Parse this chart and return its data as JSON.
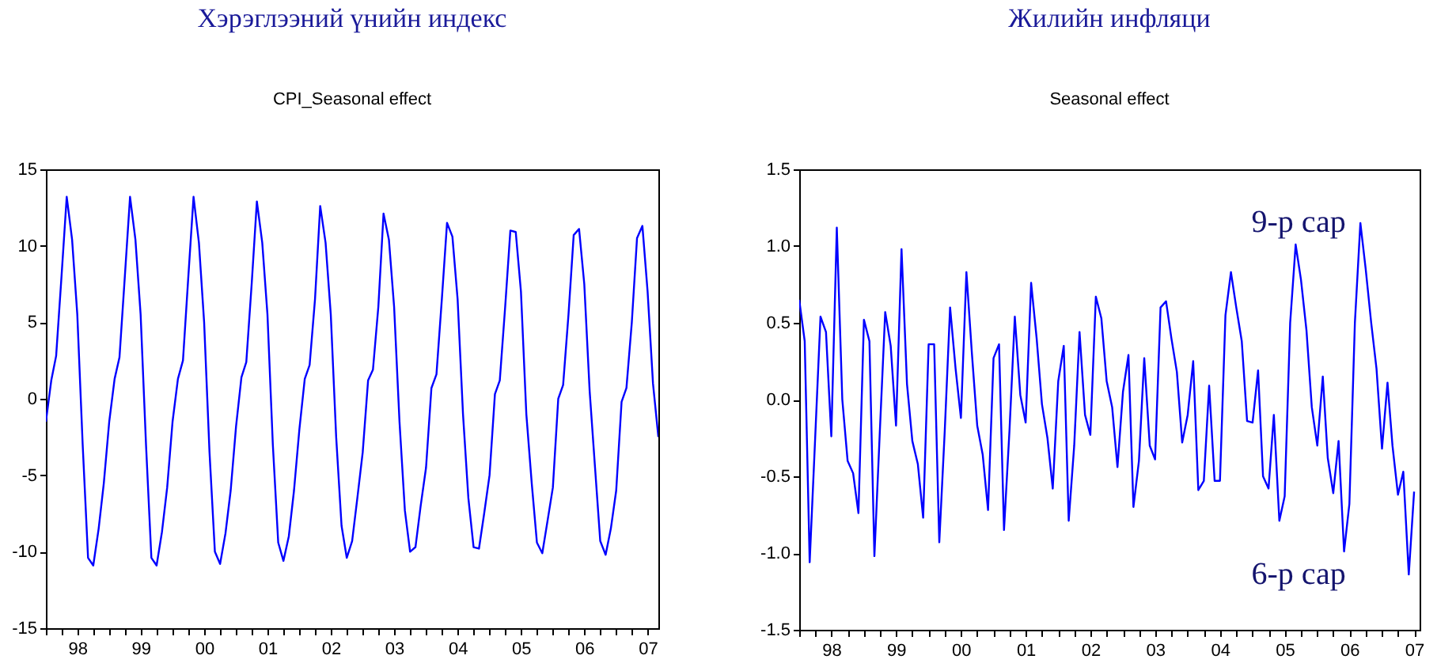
{
  "chart_data": [
    {
      "type": "line",
      "title": "Хэрэглээний үнийн индекс",
      "subtitle": "CPI_Seasonal effect",
      "x": [
        "1998-01",
        "1998-02",
        "1998-03",
        "1998-04",
        "1998-05",
        "1998-06",
        "1998-07",
        "1998-08",
        "1998-09",
        "1998-10",
        "1998-11",
        "1998-12",
        "1999-01",
        "1999-02",
        "1999-03",
        "1999-04",
        "1999-05",
        "1999-06",
        "1999-07",
        "1999-08",
        "1999-09",
        "1999-10",
        "1999-11",
        "1999-12",
        "2000-01",
        "2000-02",
        "2000-03",
        "2000-04",
        "2000-05",
        "2000-06",
        "2000-07",
        "2000-08",
        "2000-09",
        "2000-10",
        "2000-11",
        "2000-12",
        "2001-01",
        "2001-02",
        "2001-03",
        "2001-04",
        "2001-05",
        "2001-06",
        "2001-07",
        "2001-08",
        "2001-09",
        "2001-10",
        "2001-11",
        "2001-12",
        "2002-01",
        "2002-02",
        "2002-03",
        "2002-04",
        "2002-05",
        "2002-06",
        "2002-07",
        "2002-08",
        "2002-09",
        "2002-10",
        "2002-11",
        "2002-12",
        "2003-01",
        "2003-02",
        "2003-03",
        "2003-04",
        "2003-05",
        "2003-06",
        "2003-07",
        "2003-08",
        "2003-09",
        "2003-10",
        "2003-11",
        "2003-12",
        "2004-01",
        "2004-02",
        "2004-03",
        "2004-04",
        "2004-05",
        "2004-06",
        "2004-07",
        "2004-08",
        "2004-09",
        "2004-10",
        "2004-11",
        "2004-12",
        "2005-01",
        "2005-02",
        "2005-03",
        "2005-04",
        "2005-05",
        "2005-06",
        "2005-07",
        "2005-08",
        "2005-09",
        "2005-10",
        "2005-11",
        "2005-12",
        "2006-01",
        "2006-02",
        "2006-03",
        "2006-04",
        "2006-05",
        "2006-06",
        "2006-07",
        "2006-08",
        "2006-09",
        "2006-10",
        "2006-11",
        "2006-12",
        "2007-01",
        "2007-02",
        "2007-03",
        "2007-04",
        "2007-05",
        "2007-06",
        "2007-07",
        "2007-08",
        "2007-09"
      ],
      "series": [
        {
          "color": "#0000ff",
          "values": [
            -1.5,
            1.2,
            2.8,
            8.0,
            13.2,
            10.4,
            5.5,
            -3.0,
            -10.4,
            -10.9,
            -8.5,
            -5.5,
            -1.5,
            1.3,
            2.7,
            8.0,
            13.2,
            10.4,
            5.5,
            -3.0,
            -10.4,
            -10.9,
            -8.7,
            -5.8,
            -1.5,
            1.3,
            2.5,
            8.0,
            13.2,
            10.2,
            5.0,
            -3.5,
            -10.0,
            -10.8,
            -8.8,
            -6.0,
            -1.8,
            1.4,
            2.4,
            7.5,
            12.9,
            10.2,
            5.5,
            -3.0,
            -9.4,
            -10.6,
            -9.0,
            -6.0,
            -2.0,
            1.3,
            2.2,
            6.5,
            12.6,
            10.2,
            5.5,
            -2.5,
            -8.3,
            -10.4,
            -9.3,
            -6.5,
            -3.5,
            1.2,
            1.9,
            6.0,
            12.1,
            10.4,
            6.0,
            -1.5,
            -7.3,
            -10.0,
            -9.7,
            -7.0,
            -4.5,
            0.7,
            1.6,
            6.5,
            11.5,
            10.6,
            6.5,
            -1.0,
            -6.5,
            -9.7,
            -9.8,
            -7.5,
            -5.0,
            0.3,
            1.2,
            6.0,
            11.0,
            10.9,
            7.0,
            -1.0,
            -5.5,
            -9.4,
            -10.1,
            -8.0,
            -5.8,
            0.0,
            0.9,
            5.5,
            10.7,
            11.1,
            7.5,
            0.5,
            -4.5,
            -9.3,
            -10.2,
            -8.5,
            -6.0,
            -0.2,
            0.7,
            5.0,
            10.5,
            11.3,
            7.0,
            1.0,
            -2.5
          ]
        }
      ],
      "xlim": [
        "1998-01",
        "2007-09"
      ],
      "xticks": [
        {
          "value": "1998-01",
          "label": null
        },
        {
          "value": "1998-04",
          "label": null
        },
        {
          "value": "1998-07",
          "label": "98"
        },
        {
          "value": "1998-10",
          "label": null
        },
        {
          "value": "1999-01",
          "label": null
        },
        {
          "value": "1999-04",
          "label": null
        },
        {
          "value": "1999-07",
          "label": "99"
        },
        {
          "value": "1999-10",
          "label": null
        },
        {
          "value": "2000-01",
          "label": null
        },
        {
          "value": "2000-04",
          "label": null
        },
        {
          "value": "2000-07",
          "label": "00"
        },
        {
          "value": "2000-10",
          "label": null
        },
        {
          "value": "2001-01",
          "label": null
        },
        {
          "value": "2001-04",
          "label": null
        },
        {
          "value": "2001-07",
          "label": "01"
        },
        {
          "value": "2001-10",
          "label": null
        },
        {
          "value": "2002-01",
          "label": null
        },
        {
          "value": "2002-04",
          "label": null
        },
        {
          "value": "2002-07",
          "label": "02"
        },
        {
          "value": "2002-10",
          "label": null
        },
        {
          "value": "2003-01",
          "label": null
        },
        {
          "value": "2003-04",
          "label": null
        },
        {
          "value": "2003-07",
          "label": "03"
        },
        {
          "value": "2003-10",
          "label": null
        },
        {
          "value": "2004-01",
          "label": null
        },
        {
          "value": "2004-04",
          "label": null
        },
        {
          "value": "2004-07",
          "label": "04"
        },
        {
          "value": "2004-10",
          "label": null
        },
        {
          "value": "2005-01",
          "label": null
        },
        {
          "value": "2005-04",
          "label": null
        },
        {
          "value": "2005-07",
          "label": "05"
        },
        {
          "value": "2005-10",
          "label": null
        },
        {
          "value": "2006-01",
          "label": null
        },
        {
          "value": "2006-04",
          "label": null
        },
        {
          "value": "2006-07",
          "label": "06"
        },
        {
          "value": "2006-10",
          "label": null
        },
        {
          "value": "2007-01",
          "label": null
        },
        {
          "value": "2007-04",
          "label": null
        },
        {
          "value": "2007-07",
          "label": "07"
        }
      ],
      "ylim": [
        -15,
        15
      ],
      "yticks": [
        -15,
        -10,
        -5,
        0,
        5,
        10,
        15
      ],
      "grid": false
    },
    {
      "type": "line",
      "title": "Жилийн инфляци",
      "subtitle": "Seasonal effect",
      "x": [
        "1998-01",
        "1998-02",
        "1998-03",
        "1998-04",
        "1998-05",
        "1998-06",
        "1998-07",
        "1998-08",
        "1998-09",
        "1998-10",
        "1998-11",
        "1998-12",
        "1999-01",
        "1999-02",
        "1999-03",
        "1999-04",
        "1999-05",
        "1999-06",
        "1999-07",
        "1999-08",
        "1999-09",
        "1999-10",
        "1999-11",
        "1999-12",
        "2000-01",
        "2000-02",
        "2000-03",
        "2000-04",
        "2000-05",
        "2000-06",
        "2000-07",
        "2000-08",
        "2000-09",
        "2000-10",
        "2000-11",
        "2000-12",
        "2001-01",
        "2001-02",
        "2001-03",
        "2001-04",
        "2001-05",
        "2001-06",
        "2001-07",
        "2001-08",
        "2001-09",
        "2001-10",
        "2001-11",
        "2001-12",
        "2002-01",
        "2002-02",
        "2002-03",
        "2002-04",
        "2002-05",
        "2002-06",
        "2002-07",
        "2002-08",
        "2002-09",
        "2002-10",
        "2002-11",
        "2002-12",
        "2003-01",
        "2003-02",
        "2003-03",
        "2003-04",
        "2003-05",
        "2003-06",
        "2003-07",
        "2003-08",
        "2003-09",
        "2003-10",
        "2003-11",
        "2003-12",
        "2004-01",
        "2004-02",
        "2004-03",
        "2004-04",
        "2004-05",
        "2004-06",
        "2004-07",
        "2004-08",
        "2004-09",
        "2004-10",
        "2004-11",
        "2004-12",
        "2005-01",
        "2005-02",
        "2005-03",
        "2005-04",
        "2005-05",
        "2005-06",
        "2005-07",
        "2005-08",
        "2005-09",
        "2005-10",
        "2005-11",
        "2005-12",
        "2006-01",
        "2006-02",
        "2006-03",
        "2006-04",
        "2006-05",
        "2006-06",
        "2006-07",
        "2006-08",
        "2006-09",
        "2006-10",
        "2006-11",
        "2006-12",
        "2007-01",
        "2007-02",
        "2007-03",
        "2007-04",
        "2007-05",
        "2007-06",
        "2007-07"
      ],
      "series": [
        {
          "color": "#0000ff",
          "values": [
            0.65,
            0.38,
            -1.06,
            -0.25,
            0.54,
            0.44,
            -0.24,
            1.12,
            0.0,
            -0.4,
            -0.48,
            -0.74,
            0.52,
            0.38,
            -1.02,
            -0.2,
            0.57,
            0.35,
            -0.17,
            0.98,
            0.1,
            -0.27,
            -0.42,
            -0.77,
            0.36,
            0.36,
            -0.93,
            -0.2,
            0.6,
            0.2,
            -0.12,
            0.83,
            0.3,
            -0.17,
            -0.36,
            -0.72,
            0.27,
            0.36,
            -0.85,
            -0.2,
            0.54,
            0.03,
            -0.15,
            0.76,
            0.4,
            -0.03,
            -0.25,
            -0.58,
            0.12,
            0.35,
            -0.79,
            -0.3,
            0.44,
            -0.1,
            -0.23,
            0.67,
            0.53,
            0.12,
            -0.05,
            -0.44,
            0.05,
            0.29,
            -0.7,
            -0.4,
            0.27,
            -0.3,
            -0.39,
            0.6,
            0.64,
            0.4,
            0.18,
            -0.28,
            -0.1,
            0.25,
            -0.59,
            -0.53,
            0.09,
            -0.53,
            -0.53,
            0.55,
            0.83,
            0.6,
            0.38,
            -0.14,
            -0.15,
            0.19,
            -0.5,
            -0.58,
            -0.1,
            -0.79,
            -0.63,
            0.5,
            1.01,
            0.78,
            0.45,
            -0.05,
            -0.3,
            0.15,
            -0.38,
            -0.61,
            -0.27,
            -0.99,
            -0.68,
            0.5,
            1.15,
            0.85,
            0.5,
            0.2,
            -0.32,
            0.11,
            -0.3,
            -0.62,
            -0.47,
            -1.14,
            -0.6
          ]
        }
      ],
      "xlim": [
        "1998-01",
        "2007-08"
      ],
      "xticks": [
        {
          "value": "1998-01",
          "label": null
        },
        {
          "value": "1998-04",
          "label": null
        },
        {
          "value": "1998-07",
          "label": "98"
        },
        {
          "value": "1998-10",
          "label": null
        },
        {
          "value": "1999-01",
          "label": null
        },
        {
          "value": "1999-04",
          "label": null
        },
        {
          "value": "1999-07",
          "label": "99"
        },
        {
          "value": "1999-10",
          "label": null
        },
        {
          "value": "2000-01",
          "label": null
        },
        {
          "value": "2000-04",
          "label": null
        },
        {
          "value": "2000-07",
          "label": "00"
        },
        {
          "value": "2000-10",
          "label": null
        },
        {
          "value": "2001-01",
          "label": null
        },
        {
          "value": "2001-04",
          "label": null
        },
        {
          "value": "2001-07",
          "label": "01"
        },
        {
          "value": "2001-10",
          "label": null
        },
        {
          "value": "2002-01",
          "label": null
        },
        {
          "value": "2002-04",
          "label": null
        },
        {
          "value": "2002-07",
          "label": "02"
        },
        {
          "value": "2002-10",
          "label": null
        },
        {
          "value": "2003-01",
          "label": null
        },
        {
          "value": "2003-04",
          "label": null
        },
        {
          "value": "2003-07",
          "label": "03"
        },
        {
          "value": "2003-10",
          "label": null
        },
        {
          "value": "2004-01",
          "label": null
        },
        {
          "value": "2004-04",
          "label": null
        },
        {
          "value": "2004-07",
          "label": "04"
        },
        {
          "value": "2004-10",
          "label": null
        },
        {
          "value": "2005-01",
          "label": null
        },
        {
          "value": "2005-04",
          "label": null
        },
        {
          "value": "2005-07",
          "label": "05"
        },
        {
          "value": "2005-10",
          "label": null
        },
        {
          "value": "2006-01",
          "label": null
        },
        {
          "value": "2006-04",
          "label": null
        },
        {
          "value": "2006-07",
          "label": "06"
        },
        {
          "value": "2006-10",
          "label": null
        },
        {
          "value": "2007-01",
          "label": null
        },
        {
          "value": "2007-04",
          "label": null
        },
        {
          "value": "2007-07",
          "label": "07"
        }
      ],
      "ylim": [
        -1.5,
        1.5
      ],
      "yticks": [
        {
          "value": -1.5,
          "label": "-1.5"
        },
        {
          "value": -1.0,
          "label": "-1.0"
        },
        {
          "value": -0.5,
          "label": "-0.5"
        },
        {
          "value": 0,
          "label": "0.0"
        },
        {
          "value": 0.5,
          "label": "0.5"
        },
        {
          "value": 1.0,
          "label": "1.0"
        },
        {
          "value": 1.5,
          "label": "1.5"
        }
      ],
      "grid": false,
      "annotations": [
        "9-р сар",
        "6-р сар"
      ]
    }
  ]
}
